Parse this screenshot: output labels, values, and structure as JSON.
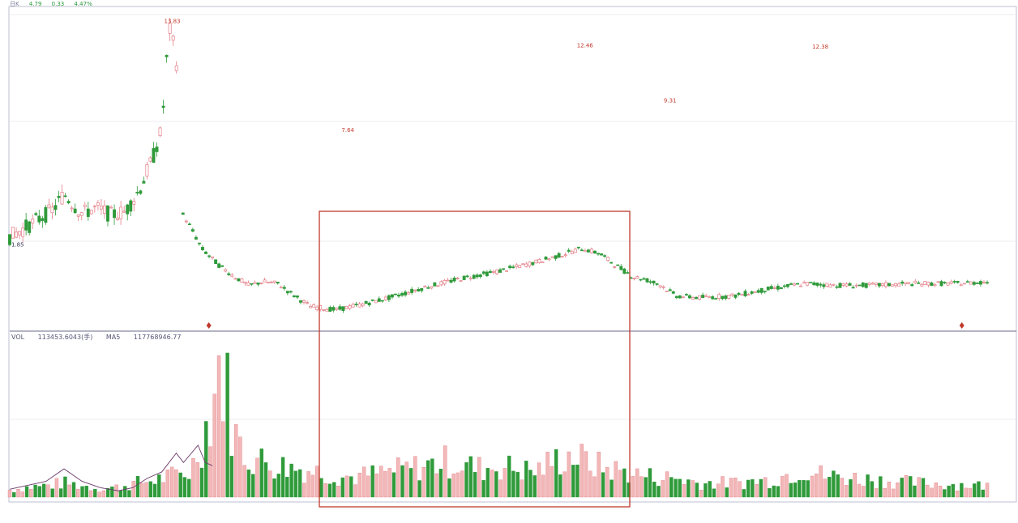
{
  "header": {
    "name": "",
    "code": "",
    "period": "日K",
    "price": "4.79",
    "change": "0.33",
    "pct": "4.47%"
  },
  "volume_header": {
    "vol_label": "VOL",
    "vol_value": "113453.6043(手)",
    "ma_label": "MA5",
    "ma_value": "117768946.77"
  },
  "colors": {
    "up": "#e37d86",
    "up_fill": "#f2b8b8",
    "down": "#2f9a3a",
    "highlight_box": "#c0392b",
    "ma_line": "#6b3a6b",
    "grid": "#e6e6ee",
    "axis": "#b0b0c8"
  },
  "chart_data": [
    {
      "type": "candlestick",
      "title": "",
      "price_labels": [
        {
          "text": "13.83",
          "x": 44,
          "y": 13.83
        },
        {
          "text": "1.85",
          "x": 0,
          "y": 1.85
        },
        {
          "text": "12.46",
          "x": 158,
          "y": 12.46
        },
        {
          "text": "7.64",
          "x": 93,
          "y": 7.64
        },
        {
          "text": "12.38",
          "x": 223,
          "y": 12.38
        },
        {
          "text": "9.31",
          "x": 182,
          "y": 9.31
        }
      ],
      "price_path": [
        [
          0,
          1.85
        ],
        [
          6,
          2.6
        ],
        [
          12,
          3.4
        ],
        [
          15,
          4.3
        ],
        [
          18,
          3.6
        ],
        [
          20,
          3.2
        ],
        [
          24,
          3.5
        ],
        [
          28,
          3.1
        ],
        [
          32,
          3.3
        ],
        [
          36,
          4.6
        ],
        [
          40,
          6.6
        ],
        [
          42,
          8.0
        ],
        [
          44,
          13.83
        ],
        [
          46,
          12.2
        ],
        [
          47,
          3.4
        ],
        [
          50,
          2.4
        ],
        [
          53,
          1.2
        ],
        [
          58,
          0.2
        ],
        [
          62,
          -0.4
        ],
        [
          66,
          -0.9
        ],
        [
          70,
          -0.7
        ],
        [
          74,
          -0.8
        ],
        [
          78,
          -1.4
        ],
        [
          83,
          -2.1
        ],
        [
          90,
          -2.3
        ],
        [
          97,
          -2.0
        ],
        [
          105,
          -1.6
        ],
        [
          115,
          -1.0
        ],
        [
          125,
          -0.5
        ],
        [
          135,
          -0.1
        ],
        [
          145,
          0.4
        ],
        [
          152,
          0.8
        ],
        [
          158,
          1.2
        ],
        [
          163,
          0.9
        ],
        [
          167,
          0.3
        ],
        [
          172,
          -0.4
        ],
        [
          176,
          -0.6
        ],
        [
          180,
          -0.9
        ],
        [
          184,
          -1.5
        ],
        [
          190,
          -1.6
        ],
        [
          200,
          -1.5
        ],
        [
          210,
          -1.1
        ],
        [
          220,
          -0.8
        ],
        [
          228,
          -0.9
        ],
        [
          238,
          -0.9
        ],
        [
          250,
          -0.8
        ],
        [
          262,
          -0.8
        ],
        [
          270,
          -0.7
        ]
      ],
      "markers": [
        {
          "x": 55
        },
        {
          "x": 263
        }
      ],
      "highlight_region": {
        "x_start": 85,
        "x_end": 172
      }
    },
    {
      "type": "bar",
      "title": "",
      "label": "VOL",
      "volume_profile": [
        [
          0,
          0.05
        ],
        [
          5,
          0.07
        ],
        [
          10,
          0.08
        ],
        [
          15,
          0.1
        ],
        [
          20,
          0.08
        ],
        [
          25,
          0.06
        ],
        [
          30,
          0.07
        ],
        [
          35,
          0.1
        ],
        [
          40,
          0.12
        ],
        [
          45,
          0.15
        ],
        [
          50,
          0.18
        ],
        [
          55,
          0.55
        ],
        [
          58,
          0.95
        ],
        [
          60,
          0.75
        ],
        [
          62,
          0.45
        ],
        [
          65,
          0.3
        ],
        [
          70,
          0.25
        ],
        [
          75,
          0.22
        ],
        [
          80,
          0.2
        ],
        [
          85,
          0.18
        ],
        [
          90,
          0.15
        ],
        [
          95,
          0.14
        ],
        [
          100,
          0.16
        ],
        [
          105,
          0.18
        ],
        [
          110,
          0.2
        ],
        [
          115,
          0.22
        ],
        [
          120,
          0.25
        ],
        [
          125,
          0.23
        ],
        [
          130,
          0.2
        ],
        [
          135,
          0.22
        ],
        [
          140,
          0.2
        ],
        [
          145,
          0.18
        ],
        [
          150,
          0.25
        ],
        [
          155,
          0.3
        ],
        [
          160,
          0.24
        ],
        [
          165,
          0.2
        ],
        [
          170,
          0.18
        ],
        [
          175,
          0.15
        ],
        [
          180,
          0.14
        ],
        [
          185,
          0.13
        ],
        [
          190,
          0.1
        ],
        [
          200,
          0.1
        ],
        [
          210,
          0.12
        ],
        [
          220,
          0.2
        ],
        [
          225,
          0.15
        ],
        [
          230,
          0.14
        ],
        [
          240,
          0.12
        ],
        [
          250,
          0.1
        ],
        [
          260,
          0.09
        ],
        [
          270,
          0.08
        ]
      ],
      "ma_profile": [
        [
          0,
          0.05
        ],
        [
          10,
          0.1
        ],
        [
          15,
          0.18
        ],
        [
          20,
          0.1
        ],
        [
          25,
          0.06
        ],
        [
          30,
          0.04
        ],
        [
          34,
          0.06
        ],
        [
          38,
          0.12
        ],
        [
          42,
          0.16
        ],
        [
          46,
          0.28
        ],
        [
          48,
          0.22
        ],
        [
          52,
          0.33
        ],
        [
          54,
          0.22
        ],
        [
          56,
          0.2
        ]
      ]
    }
  ]
}
